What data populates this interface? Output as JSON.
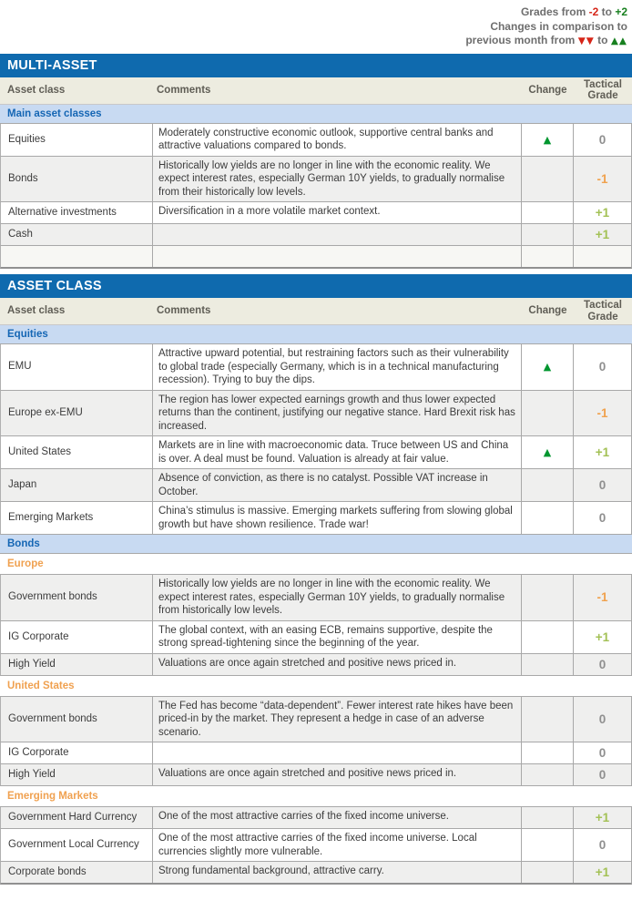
{
  "legend": {
    "grades_prefix": "Grades from ",
    "grades_min": "-2",
    "grades_mid": " to ",
    "grades_max": "+2",
    "line2": "Changes in comparison to",
    "line3_prefix": "previous month from ",
    "down_symbol": "▼▼",
    "line3_mid": " to ",
    "up_symbol": "▲▲"
  },
  "columns": {
    "asset_class": "Asset class",
    "comments": "Comments",
    "change": "Change",
    "tactical_grade": "Tactical Grade"
  },
  "icons": {
    "up": "▲",
    "down": "▼"
  },
  "colors": {
    "header_bar_blue": "#0f6aae",
    "group_row_blue_bg": "#c8daf2",
    "group_text_blue": "#1566b4",
    "subsection_orange": "#f0a150",
    "column_header_beige": "#edece0",
    "grade_positive_green": "#a3c155",
    "grade_negative_orange": "#f0a24e",
    "grade_neutral_grey": "#8f8f8f",
    "change_up_green": "#00962f",
    "legend_red": "#d62518",
    "legend_green": "#17801f",
    "row_shade_grey": "#efefee"
  },
  "sections": [
    {
      "title": "MULTI-ASSET",
      "rows": [
        {
          "type": "group",
          "label": "Main asset classes"
        },
        {
          "type": "data",
          "name": "Equities",
          "comment": "Moderately constructive economic outlook, supportive central banks and attractive valuations compared to bonds.",
          "change": "up",
          "grade": "0",
          "shade": false
        },
        {
          "type": "data",
          "name": "Bonds",
          "comment": "Historically low yields are no longer in line with the economic reality. We expect interest rates, especially German 10Y yields, to gradually normalise from their historically low levels.",
          "change": "",
          "grade": "-1",
          "shade": true
        },
        {
          "type": "data",
          "name": "Alternative investments",
          "comment": "Diversification in a more volatile market context.",
          "change": "",
          "grade": "+1",
          "shade": false
        },
        {
          "type": "data",
          "name": "Cash",
          "comment": "",
          "change": "",
          "grade": "+1",
          "shade": true
        },
        {
          "type": "data",
          "name": "",
          "comment": "",
          "change": "",
          "grade": "",
          "shade": false,
          "empty": true
        }
      ]
    },
    {
      "title": "ASSET CLASS",
      "rows": [
        {
          "type": "group",
          "label": "Equities"
        },
        {
          "type": "data",
          "name": "EMU",
          "comment": "Attractive upward potential, but restraining factors such as their vulnerability to global trade (especially Germany, which is in a technical manufacturing recession). Trying to buy the dips.",
          "change": "up",
          "grade": "0",
          "shade": false
        },
        {
          "type": "data",
          "name": "Europe ex-EMU",
          "comment": "The region has lower expected earnings growth and thus lower expected returns than the continent, justifying our negative stance. Hard Brexit risk has increased.",
          "change": "",
          "grade": "-1",
          "shade": true
        },
        {
          "type": "data",
          "name": "United States",
          "comment": "Markets are in line with macroeconomic data. Truce between US and China is over. A deal must be found. Valuation is already at fair value.",
          "change": "up",
          "grade": "+1",
          "shade": false
        },
        {
          "type": "data",
          "name": "Japan",
          "comment": "Absence of conviction, as there is no catalyst. Possible VAT increase in October.",
          "change": "",
          "grade": "0",
          "shade": true
        },
        {
          "type": "data",
          "name": "Emerging Markets",
          "comment": "China’s stimulus is massive. Emerging markets suffering from slowing global growth but have shown resilience. Trade war!",
          "change": "",
          "grade": "0",
          "shade": false
        },
        {
          "type": "group",
          "label": "Bonds"
        },
        {
          "type": "sub",
          "label": "Europe"
        },
        {
          "type": "data",
          "name": "Government bonds",
          "comment": "Historically low yields are no longer in line with the economic reality. We expect interest rates, especially German 10Y yields, to gradually normalise from historically low levels.",
          "change": "",
          "grade": "-1",
          "shade": true
        },
        {
          "type": "data",
          "name": "IG Corporate",
          "comment": "The global context, with an easing ECB, remains supportive, despite the strong spread-tightening since the beginning of the year.",
          "change": "",
          "grade": "+1",
          "shade": false
        },
        {
          "type": "data",
          "name": "High Yield",
          "comment": "Valuations are once again stretched and positive news priced in.",
          "change": "",
          "grade": "0",
          "shade": true
        },
        {
          "type": "sub",
          "label": "United States"
        },
        {
          "type": "data",
          "name": "Government bonds",
          "comment": "The Fed has become “data-dependent”. Fewer interest rate hikes have been priced-in by the market. They represent a hedge in case of an adverse scenario.",
          "change": "",
          "grade": "0",
          "shade": true
        },
        {
          "type": "data",
          "name": "IG Corporate",
          "comment": "",
          "change": "",
          "grade": "0",
          "shade": false
        },
        {
          "type": "data",
          "name": "High Yield",
          "comment": "Valuations are once again stretched and positive news priced in.",
          "change": "",
          "grade": "0",
          "shade": true
        },
        {
          "type": "sub",
          "label": "Emerging Markets"
        },
        {
          "type": "data",
          "name": "Government Hard Currency",
          "comment": "One of the most attractive carries of the fixed income universe.",
          "change": "",
          "grade": "+1",
          "shade": true
        },
        {
          "type": "data",
          "name": "Government Local Currency",
          "comment": "One of the most attractive carries of the fixed income universe. Local currencies slightly more vulnerable.",
          "change": "",
          "grade": "0",
          "shade": false
        },
        {
          "type": "data",
          "name": "Corporate bonds",
          "comment": "Strong fundamental background, attractive carry.",
          "change": "",
          "grade": "+1",
          "shade": true
        }
      ]
    }
  ]
}
